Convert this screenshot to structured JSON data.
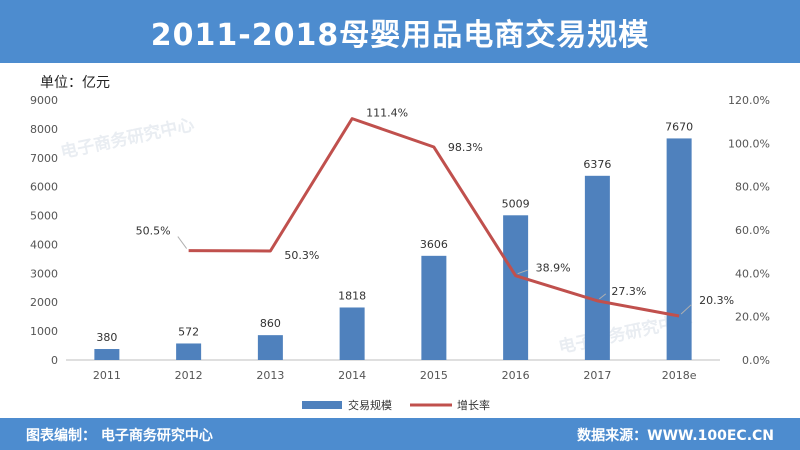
{
  "header": {
    "title": "2011-2018母婴用品电商交易规模"
  },
  "unit_label": "单位：亿元",
  "footer": {
    "left": "图表编制：  电子商务研究中心",
    "right": "数据来源：WWW.100EC.CN"
  },
  "watermark": "电子商务研究中心",
  "colors": {
    "bar": "#4f81bd",
    "line": "#c0504d",
    "banner": "#4d8ccf"
  },
  "chart_data": {
    "type": "bar",
    "categories": [
      "2011",
      "2012",
      "2013",
      "2014",
      "2015",
      "2016",
      "2017",
      "2018e"
    ],
    "series": [
      {
        "name": "交易规模",
        "type": "bar",
        "axis": "left",
        "values": [
          380,
          572,
          860,
          1818,
          3606,
          5009,
          6376,
          7670
        ]
      },
      {
        "name": "增长率",
        "type": "line",
        "axis": "right",
        "values": [
          null,
          50.5,
          50.3,
          111.4,
          98.3,
          38.9,
          27.3,
          20.3
        ]
      }
    ],
    "value_labels": [
      "380",
      "572",
      "860",
      "1818",
      "3606",
      "5009",
      "6376",
      "7670"
    ],
    "rate_labels": [
      "",
      "50.5%",
      "50.3%",
      "111.4%",
      "98.3%",
      "38.9%",
      "27.3%",
      "20.3%"
    ],
    "y_left": {
      "min": 0,
      "max": 9000,
      "ticks": [
        "0",
        "1000",
        "2000",
        "3000",
        "4000",
        "5000",
        "6000",
        "7000",
        "8000",
        "9000"
      ]
    },
    "y_right": {
      "min": 0,
      "max": 120,
      "ticks": [
        "0.0%",
        "20.0%",
        "40.0%",
        "60.0%",
        "80.0%",
        "100.0%",
        "120.0%"
      ]
    },
    "grid": false,
    "legend_position": "bottom"
  }
}
